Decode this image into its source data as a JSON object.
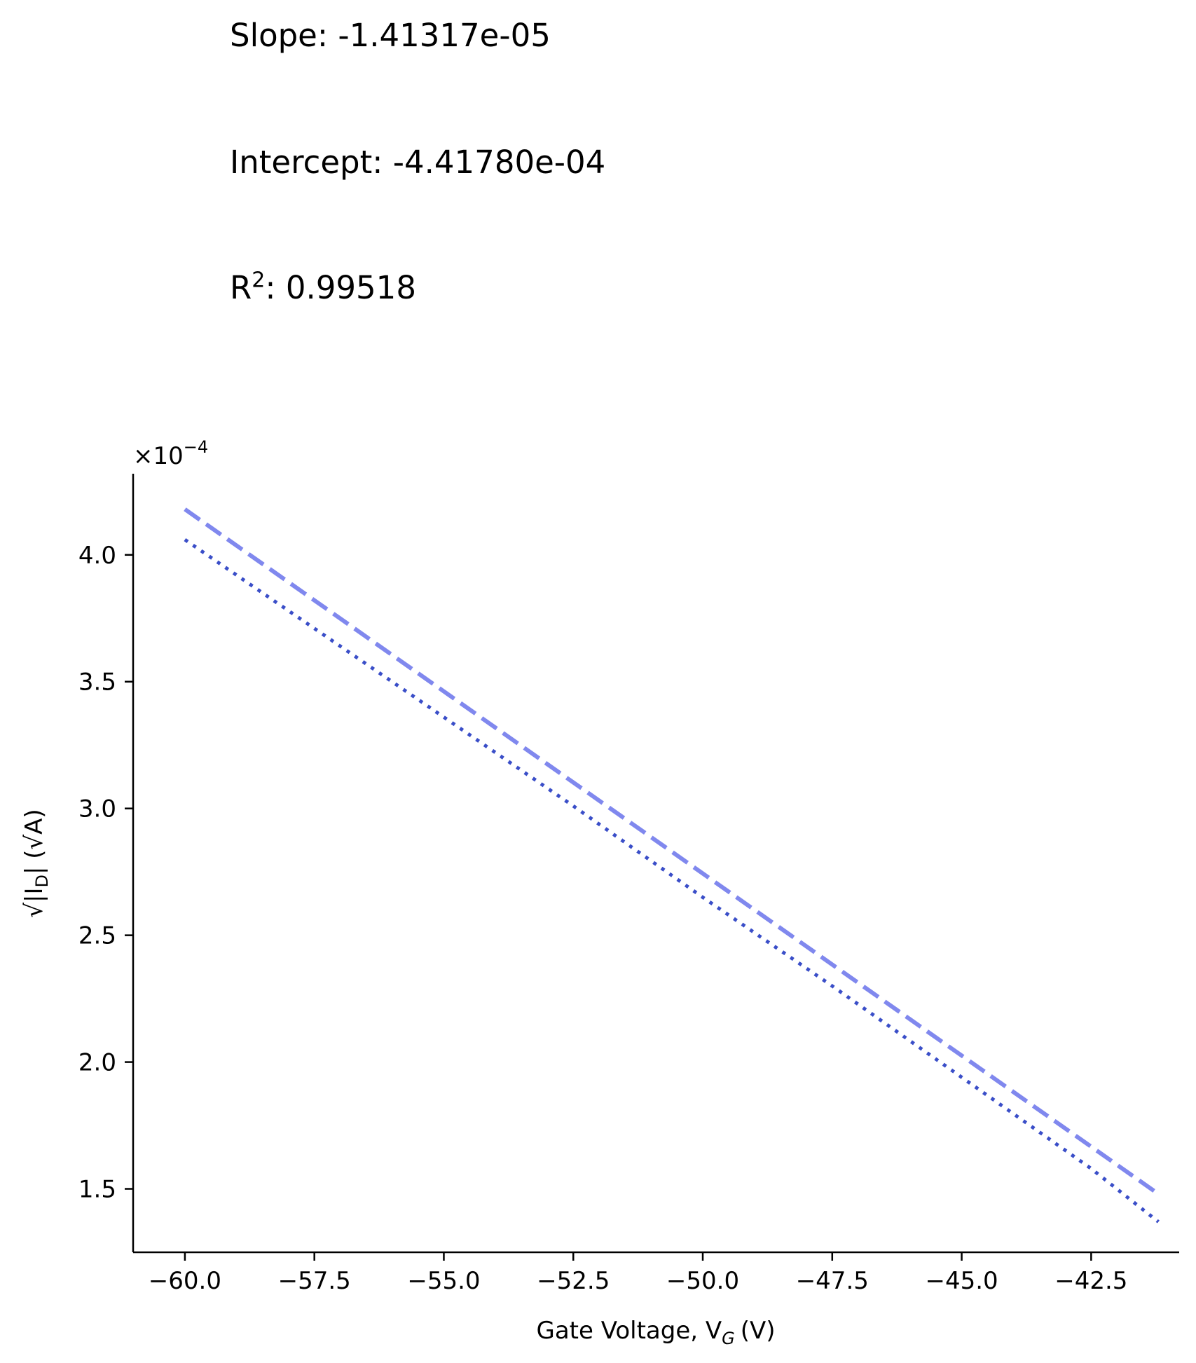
{
  "fit": {
    "slope_label": "Slope:",
    "slope_value": "-1.41317e-05",
    "intercept_label": "Intercept:",
    "intercept_value": "-4.41780e-04",
    "r2_label": "R",
    "r2_exp": "2",
    "r2_value": "0.99518"
  },
  "chart_data": {
    "type": "line",
    "xlabel": "Gate Voltage, V",
    "xlabel_sub": "G",
    "xlabel_unit": "(V)",
    "ylabel": "√|I",
    "ylabel_sub": "D",
    "ylabel_unit": "| (√A)",
    "y_offset_text": "×10",
    "y_offset_exp": "−4",
    "y_scale": 0.0001,
    "xlim": [
      -61.0,
      -40.8
    ],
    "ylim": [
      1.25,
      4.32
    ],
    "xticks": [
      -60.0,
      -57.5,
      -55.0,
      -52.5,
      -50.0,
      -47.5,
      -45.0,
      -42.5
    ],
    "xtick_labels": [
      "−60.0",
      "−57.5",
      "−55.0",
      "−52.5",
      "−50.0",
      "−47.5",
      "−45.0",
      "−42.5"
    ],
    "yticks": [
      1.5,
      2.0,
      2.5,
      3.0,
      3.5,
      4.0
    ],
    "ytick_labels": [
      "1.5",
      "2.0",
      "2.5",
      "3.0",
      "3.5",
      "4.0"
    ],
    "series": [
      {
        "style": "dashed",
        "color": "#8088ee",
        "x": [
          -60.0,
          -41.2
        ],
        "y": [
          4.18,
          1.48
        ]
      },
      {
        "style": "dotted",
        "color": "#3a4ec8",
        "x": [
          -60.0,
          -57.5,
          -55.0,
          -52.5,
          -50.0,
          -47.5,
          -45.0,
          -42.5,
          -41.2
        ],
        "y": [
          4.06,
          3.71,
          3.36,
          3.01,
          2.65,
          2.3,
          1.94,
          1.58,
          1.37
        ]
      }
    ]
  }
}
